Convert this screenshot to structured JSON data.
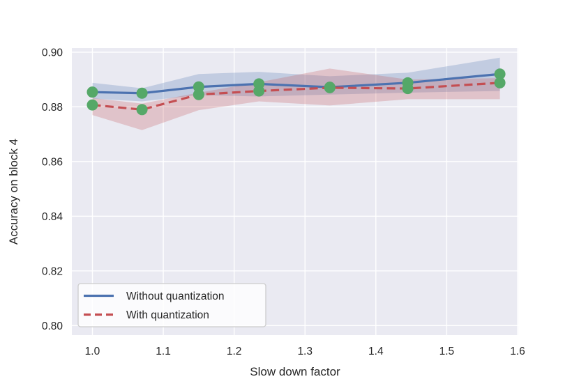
{
  "chart_data": {
    "type": "line",
    "title": "",
    "xlabel": "Slow down factor",
    "ylabel": "Accuracy on block 4",
    "x": [
      1.0,
      1.07,
      1.15,
      1.235,
      1.335,
      1.445,
      1.575
    ],
    "series": [
      {
        "name": "Without quantization",
        "color": "#4c72b0",
        "line_style": "solid",
        "values": [
          0.8854,
          0.885,
          0.8873,
          0.8884,
          0.8872,
          0.8888,
          0.892
        ],
        "band_upper": [
          0.8888,
          0.8868,
          0.892,
          0.8928,
          0.8912,
          0.8925,
          0.898
        ],
        "band_lower": [
          0.883,
          0.882,
          0.8843,
          0.8838,
          0.8845,
          0.8852,
          0.8858
        ]
      },
      {
        "name": "With quantization",
        "color": "#c44e52",
        "line_style": "dashed",
        "values": [
          0.8807,
          0.879,
          0.8845,
          0.8858,
          0.887,
          0.8867,
          0.8888
        ],
        "band_upper": [
          0.8832,
          0.8812,
          0.8852,
          0.889,
          0.894,
          0.89,
          0.8905
        ],
        "band_lower": [
          0.877,
          0.8715,
          0.8788,
          0.882,
          0.8805,
          0.8828,
          0.8828
        ]
      }
    ],
    "markers": {
      "color": "#55a868",
      "radius_px": 8
    },
    "x_ticks": [
      1.0,
      1.1,
      1.2,
      1.3,
      1.4,
      1.5,
      1.6
    ],
    "x_tick_labels": [
      "1.0",
      "1.1",
      "1.2",
      "1.3",
      "1.4",
      "1.5",
      "1.6"
    ],
    "y_ticks": [
      0.8,
      0.82,
      0.84,
      0.86,
      0.88,
      0.9
    ],
    "y_tick_labels": [
      "0.80",
      "0.82",
      "0.84",
      "0.86",
      "0.88",
      "0.90"
    ],
    "xlim": [
      0.971,
      1.601
    ],
    "ylim": [
      0.7965,
      0.9015
    ],
    "grid": true,
    "band_opacity": 0.25,
    "legend": {
      "position": "lower left",
      "entries": [
        "Without quantization",
        "With quantization"
      ]
    },
    "colors": {
      "plot_background": "#eaeaf2",
      "grid": "#ffffff",
      "text": "#262626",
      "legend_border": "#cccccc",
      "legend_background": "#ffffff"
    }
  }
}
